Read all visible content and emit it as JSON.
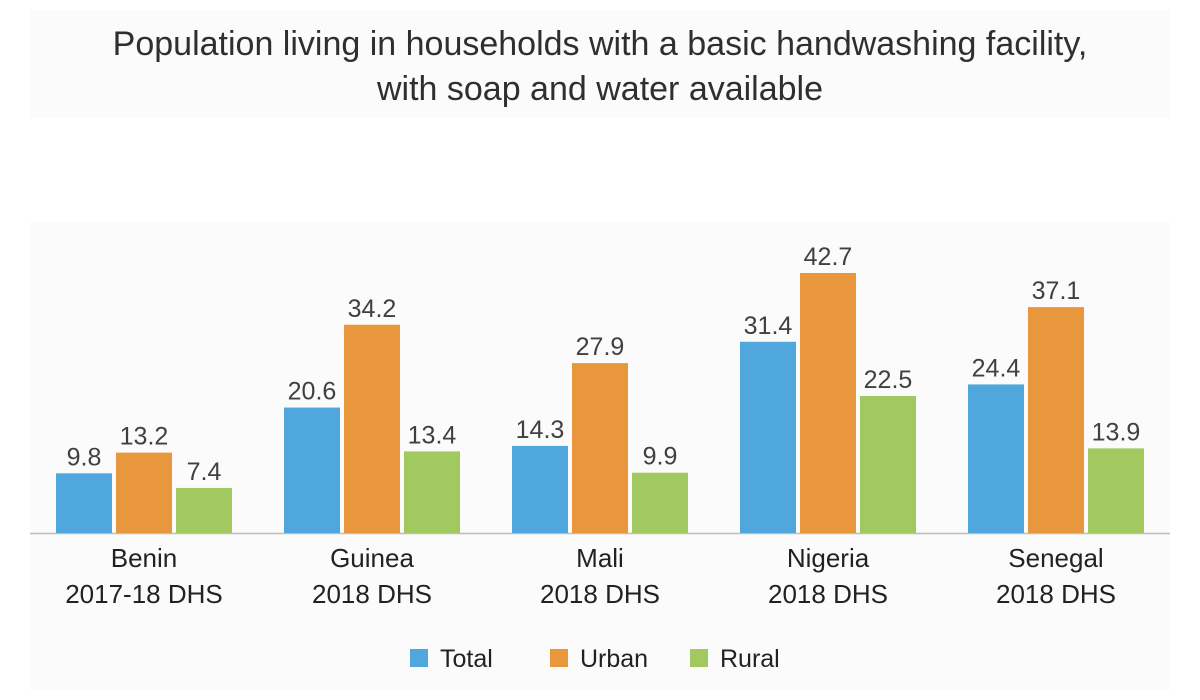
{
  "chart_data": {
    "type": "bar",
    "title_lines": [
      "Population living in households with a basic handwashing facility,",
      "with soap and water available"
    ],
    "xlabel": "",
    "ylabel": "",
    "ylim": [
      0,
      45
    ],
    "grid": false,
    "legend_position": "bottom",
    "categories": [
      [
        "Benin",
        "2017-18 DHS"
      ],
      [
        "Guinea",
        "2018 DHS"
      ],
      [
        "Mali",
        "2018 DHS"
      ],
      [
        "Nigeria",
        "2018 DHS"
      ],
      [
        "Senegal",
        "2018 DHS"
      ]
    ],
    "series": [
      {
        "name": "Total",
        "color": "#4fa7dd",
        "values": [
          9.8,
          20.6,
          14.3,
          31.4,
          24.4
        ]
      },
      {
        "name": "Urban",
        "color": "#e8973d",
        "values": [
          13.2,
          34.2,
          27.9,
          42.7,
          37.1
        ]
      },
      {
        "name": "Rural",
        "color": "#a2c95f",
        "values": [
          7.4,
          13.4,
          9.9,
          22.5,
          13.9
        ]
      }
    ],
    "data_labels": [
      [
        "9.8",
        "20.6",
        "14.3",
        "31.4",
        "24.4"
      ],
      [
        "13.2",
        "34.2",
        "27.9",
        "42.7",
        "37.1"
      ],
      [
        "7.4",
        "13.4",
        "9.9",
        "22.5",
        "13.9"
      ]
    ]
  }
}
